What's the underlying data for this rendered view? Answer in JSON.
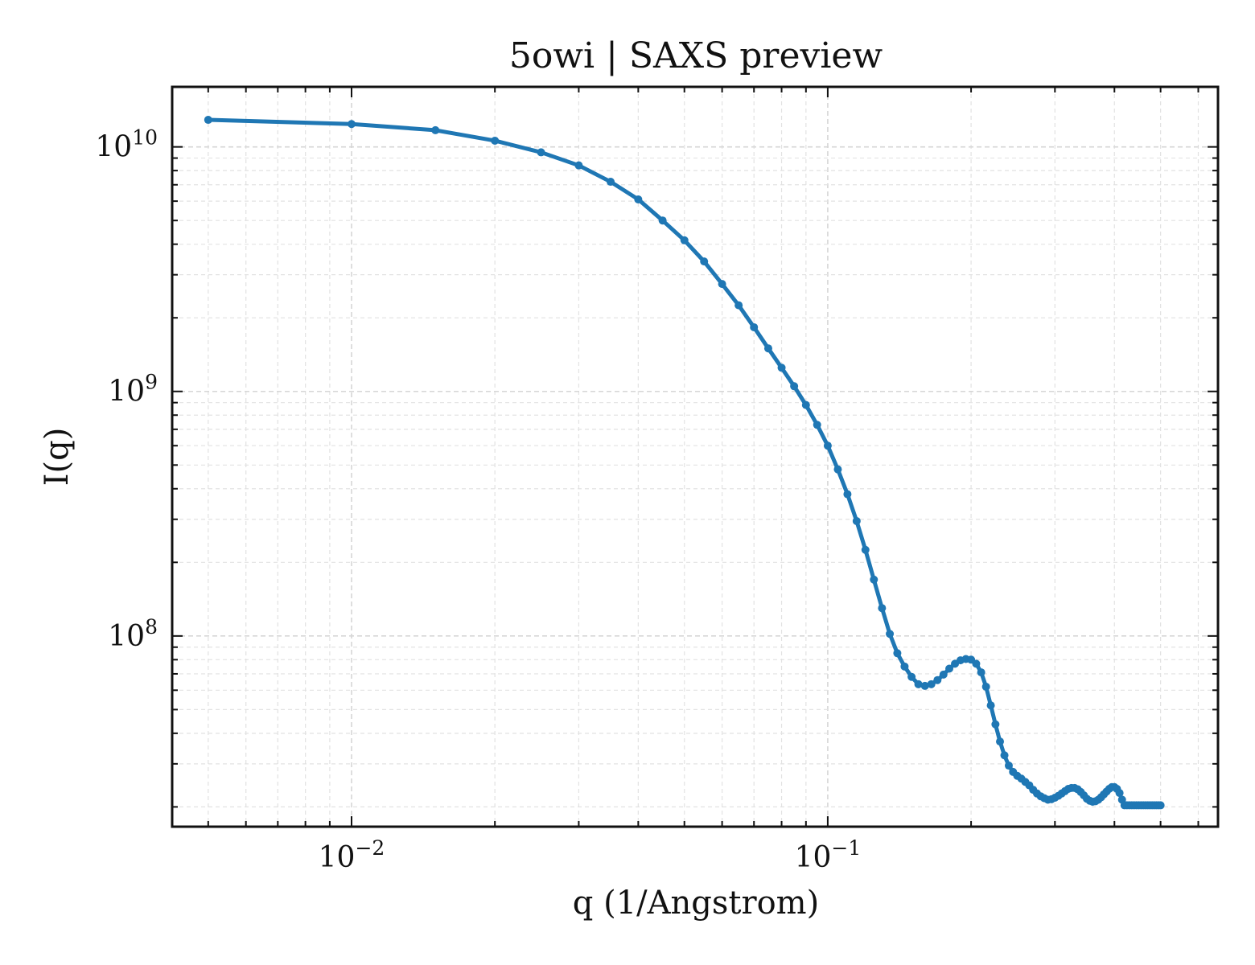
{
  "chart_data": {
    "type": "line",
    "title": "5owi | SAXS preview",
    "xlabel": "q (1/Angstrom)",
    "ylabel": "I(q)",
    "x_scale": "log",
    "y_scale": "log",
    "xlim": [
      0.0042,
      0.66
    ],
    "ylim": [
      16600000,
      17600000000
    ],
    "x_ticks": [
      {
        "value": 0.01,
        "base": "10",
        "exp": "−2"
      },
      {
        "value": 0.1,
        "base": "10",
        "exp": "−1"
      }
    ],
    "y_ticks": [
      {
        "value": 100000000,
        "base": "10",
        "exp": "8"
      },
      {
        "value": 1000000000,
        "base": "10",
        "exp": "9"
      },
      {
        "value": 10000000000,
        "base": "10",
        "exp": "10"
      }
    ],
    "grid": true,
    "color": "#1f77b4",
    "series": [
      {
        "x": [
          0.005,
          0.01,
          0.015,
          0.02,
          0.025,
          0.03,
          0.035,
          0.04,
          0.045,
          0.05,
          0.055,
          0.06,
          0.065,
          0.07,
          0.075,
          0.08,
          0.085,
          0.09,
          0.095,
          0.1,
          0.105,
          0.11,
          0.115,
          0.12,
          0.125,
          0.13,
          0.135,
          0.14,
          0.145,
          0.15,
          0.155,
          0.16,
          0.165,
          0.17,
          0.175,
          0.18,
          0.185,
          0.19,
          0.195,
          0.2,
          0.205,
          0.21,
          0.215,
          0.22,
          0.225,
          0.23,
          0.235,
          0.24,
          0.245,
          0.25,
          0.255,
          0.26,
          0.265,
          0.27,
          0.275,
          0.28,
          0.285,
          0.29,
          0.295,
          0.3,
          0.305,
          0.31,
          0.315,
          0.32,
          0.325,
          0.33,
          0.335,
          0.34,
          0.345,
          0.35,
          0.355,
          0.36,
          0.365,
          0.37,
          0.375,
          0.38,
          0.385,
          0.39,
          0.395,
          0.4,
          0.405,
          0.41,
          0.415,
          0.42,
          0.425,
          0.43,
          0.435,
          0.44,
          0.445,
          0.45,
          0.455,
          0.46,
          0.465,
          0.47,
          0.475,
          0.48,
          0.485,
          0.49,
          0.495,
          0.5
        ],
        "y": [
          12900000000,
          12400000000,
          11700000000,
          10600000000,
          9500000000,
          8400000000,
          7200000000,
          6100000000,
          5000000000,
          4150000000,
          3400000000,
          2750000000,
          2250000000,
          1830000000,
          1500000000,
          1250000000,
          1050000000,
          880000000,
          730000000,
          600000000,
          480000000,
          380000000,
          295000000,
          225000000,
          170000000,
          130000000,
          102000000,
          85000000,
          75000000,
          68000000,
          63500000,
          62500000,
          63500000,
          66000000,
          69500000,
          73500000,
          77000000,
          79500000,
          80500000,
          80000000,
          77000000,
          71000000,
          62000000,
          52000000,
          43500000,
          37000000,
          32500000,
          29500000,
          27800000,
          26800000,
          26100000,
          25300000,
          24500000,
          23500000,
          22700000,
          22100000,
          21700000,
          21400000,
          21500000,
          21800000,
          22200000,
          22700000,
          23200000,
          23700000,
          23900000,
          23900000,
          23600000,
          23000000,
          22300000,
          21600000,
          21200000,
          21000000,
          21100000,
          21400000,
          21900000,
          22500000,
          23100000,
          23700000,
          24100000,
          24100000,
          23700000,
          22800000,
          21400000,
          20300000,
          20300000,
          20300000,
          20300000,
          20300000,
          20300000,
          20300000,
          20300000,
          20300000,
          20300000,
          20300000,
          20300000,
          20300000,
          20300000,
          20300000,
          20300000,
          20300000
        ]
      }
    ]
  }
}
